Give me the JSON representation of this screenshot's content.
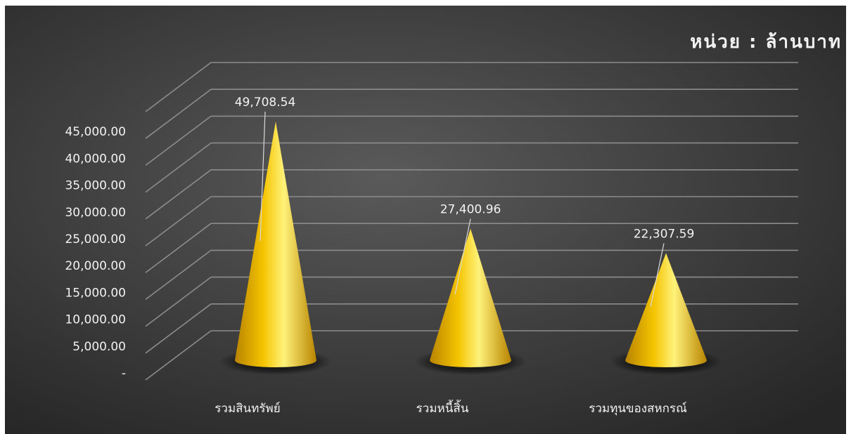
{
  "chart_data": {
    "type": "bar",
    "shape": "cone-3d",
    "title": "หน่วย : ล้านบาท",
    "categories": [
      "รวมสินทรัพย์",
      "รวมหนี้สิ้น",
      "รวมทุนของสหกรณ์"
    ],
    "values": [
      49708.54,
      27400.96,
      22307.59
    ],
    "data_labels": [
      "49,708.54",
      "27,400.96",
      "22,307.59"
    ],
    "y_ticks": [
      0,
      5000,
      10000,
      15000,
      20000,
      25000,
      30000,
      35000,
      40000,
      45000
    ],
    "y_tick_labels": [
      "-",
      "5,000.00",
      "10,000.00",
      "15,000.00",
      "20,000.00",
      "25,000.00",
      "30,000.00",
      "35,000.00",
      "40,000.00",
      "45,000.00"
    ],
    "ylim": [
      0,
      50000
    ],
    "grid": true,
    "colors": {
      "background_center": "#5a5a5a",
      "background_edge": "#262626",
      "cone_light": "#fff27a",
      "cone_mid": "#f5c400",
      "cone_dark": "#b88400",
      "grid": "#8c8c8c",
      "text": "#f2f2f2"
    }
  }
}
